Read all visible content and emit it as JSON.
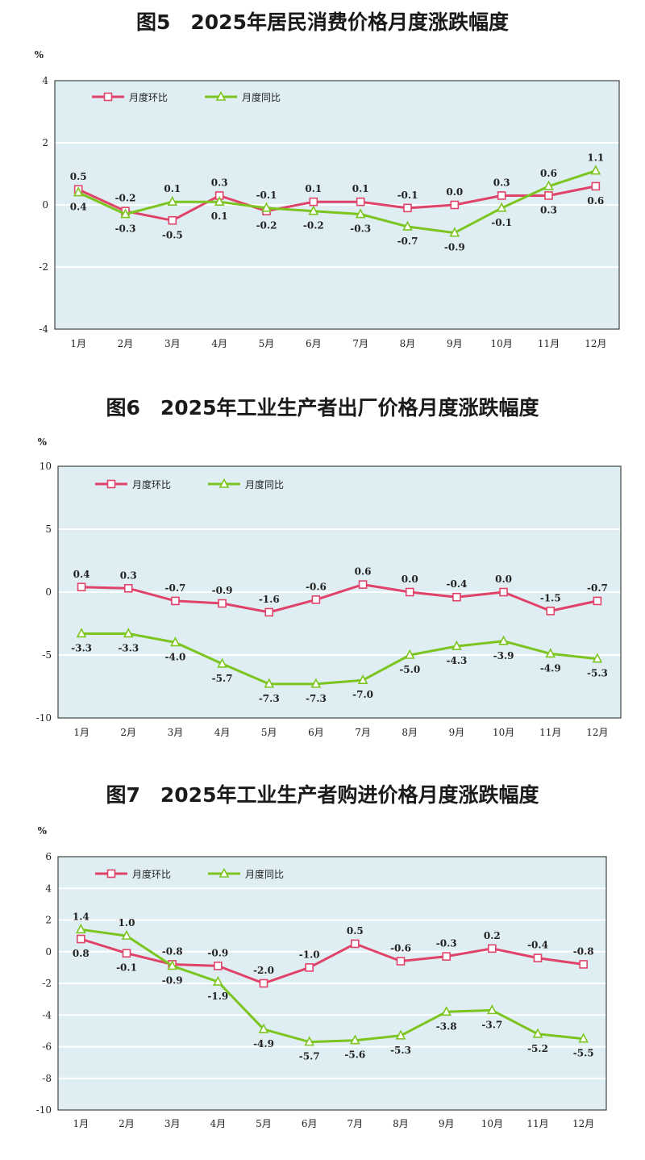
{
  "charts": [
    {
      "title": "图5　2025年居民消费价格月度涨跌幅度",
      "chart_data": {
        "type": "line",
        "categories": [
          "1月",
          "2月",
          "3月",
          "4月",
          "5月",
          "6月",
          "7月",
          "8月",
          "9月",
          "10月",
          "11月",
          "12月"
        ],
        "ylabel": "%",
        "ylim": [
          -4,
          4
        ],
        "yticks": [
          -4,
          -2,
          0,
          2,
          4
        ],
        "grid": true,
        "legend": "top-left",
        "series": [
          {
            "name": "月度环比",
            "color": "#e0436a",
            "marker": "square",
            "values": [
              0.5,
              -0.2,
              -0.5,
              0.3,
              -0.2,
              0.1,
              0.1,
              -0.1,
              0.0,
              0.3,
              0.3,
              0.6
            ]
          },
          {
            "name": "月度同比",
            "color": "#7cc520",
            "marker": "triangle",
            "values": [
              0.4,
              -0.3,
              0.1,
              0.1,
              -0.1,
              -0.2,
              -0.3,
              -0.7,
              -0.9,
              -0.1,
              0.6,
              1.1
            ]
          }
        ],
        "labels": [
          {
            "text": "0.5",
            "i": 0,
            "v": 0.5,
            "pos": "above"
          },
          {
            "text": "0.4",
            "i": 0,
            "v": 0.4,
            "pos": "below"
          },
          {
            "text": "-0.2",
            "i": 1,
            "v": -0.2,
            "pos": "above"
          },
          {
            "text": "-0.3",
            "i": 1,
            "v": -0.3,
            "pos": "below"
          },
          {
            "text": "0.1",
            "i": 2,
            "v": 0.1,
            "pos": "above"
          },
          {
            "text": "-0.5",
            "i": 2,
            "v": -0.5,
            "pos": "below"
          },
          {
            "text": "0.3",
            "i": 3,
            "v": 0.3,
            "pos": "above"
          },
          {
            "text": "0.1",
            "i": 3,
            "v": 0.1,
            "pos": "below"
          },
          {
            "text": "-0.1",
            "i": 4,
            "v": -0.1,
            "pos": "above"
          },
          {
            "text": "-0.2",
            "i": 4,
            "v": -0.2,
            "pos": "below"
          },
          {
            "text": "0.1",
            "i": 5,
            "v": 0.1,
            "pos": "above"
          },
          {
            "text": "-0.2",
            "i": 5,
            "v": -0.2,
            "pos": "below"
          },
          {
            "text": "0.1",
            "i": 6,
            "v": 0.1,
            "pos": "above"
          },
          {
            "text": "-0.3",
            "i": 6,
            "v": -0.3,
            "pos": "below"
          },
          {
            "text": "-0.1",
            "i": 7,
            "v": -0.1,
            "pos": "above"
          },
          {
            "text": "-0.7",
            "i": 7,
            "v": -0.7,
            "pos": "below"
          },
          {
            "text": "0.0",
            "i": 8,
            "v": 0.0,
            "pos": "above"
          },
          {
            "text": "-0.9",
            "i": 8,
            "v": -0.9,
            "pos": "below"
          },
          {
            "text": "0.3",
            "i": 9,
            "v": 0.3,
            "pos": "above"
          },
          {
            "text": "-0.1",
            "i": 9,
            "v": -0.1,
            "pos": "below"
          },
          {
            "text": "0.6",
            "i": 10,
            "v": 0.6,
            "pos": "above"
          },
          {
            "text": "0.3",
            "i": 10,
            "v": 0.3,
            "pos": "below"
          },
          {
            "text": "1.1",
            "i": 11,
            "v": 1.1,
            "pos": "above"
          },
          {
            "text": "0.6",
            "i": 11,
            "v": 0.6,
            "pos": "below"
          }
        ]
      }
    },
    {
      "title": "图6　2025年工业生产者出厂价格月度涨跌幅度",
      "chart_data": {
        "type": "line",
        "categories": [
          "1月",
          "2月",
          "3月",
          "4月",
          "5月",
          "6月",
          "7月",
          "8月",
          "9月",
          "10月",
          "11月",
          "12月"
        ],
        "ylabel": "%",
        "ylim": [
          -10,
          10
        ],
        "yticks": [
          -10,
          -5,
          0,
          5,
          10
        ],
        "grid": true,
        "legend": "top-left",
        "series": [
          {
            "name": "月度环比",
            "color": "#e0436a",
            "marker": "square",
            "values": [
              0.4,
              0.3,
              -0.7,
              -0.9,
              -1.6,
              -0.6,
              0.6,
              0.0,
              -0.4,
              0.0,
              -1.5,
              -0.7
            ]
          },
          {
            "name": "月度同比",
            "color": "#7cc520",
            "marker": "triangle",
            "values": [
              -3.3,
              -3.3,
              -4.0,
              -5.7,
              -7.3,
              -7.3,
              -7.0,
              -5.0,
              -4.3,
              -3.9,
              -4.9,
              -5.3
            ]
          }
        ],
        "labels": [
          {
            "text": "0.4",
            "i": 0,
            "v": 0.4,
            "pos": "above"
          },
          {
            "text": "0.3",
            "i": 1,
            "v": 0.3,
            "pos": "above"
          },
          {
            "text": "-0.7",
            "i": 2,
            "v": -0.7,
            "pos": "above"
          },
          {
            "text": "-0.9",
            "i": 3,
            "v": -0.9,
            "pos": "above"
          },
          {
            "text": "-1.6",
            "i": 4,
            "v": -1.6,
            "pos": "above"
          },
          {
            "text": "-0.6",
            "i": 5,
            "v": -0.6,
            "pos": "above"
          },
          {
            "text": "0.6",
            "i": 6,
            "v": 0.6,
            "pos": "above"
          },
          {
            "text": "0.0",
            "i": 7,
            "v": 0.0,
            "pos": "above"
          },
          {
            "text": "-0.4",
            "i": 8,
            "v": -0.4,
            "pos": "above"
          },
          {
            "text": "0.0",
            "i": 9,
            "v": 0.0,
            "pos": "above"
          },
          {
            "text": "-1.5",
            "i": 10,
            "v": -1.5,
            "pos": "above"
          },
          {
            "text": "-0.7",
            "i": 11,
            "v": -0.7,
            "pos": "above"
          },
          {
            "text": "-3.3",
            "i": 0,
            "v": -3.3,
            "pos": "below"
          },
          {
            "text": "-3.3",
            "i": 1,
            "v": -3.3,
            "pos": "below"
          },
          {
            "text": "-4.0",
            "i": 2,
            "v": -4.0,
            "pos": "below"
          },
          {
            "text": "-5.7",
            "i": 3,
            "v": -5.7,
            "pos": "below"
          },
          {
            "text": "-7.3",
            "i": 4,
            "v": -7.3,
            "pos": "below"
          },
          {
            "text": "-7.3",
            "i": 5,
            "v": -7.3,
            "pos": "below"
          },
          {
            "text": "-7.0",
            "i": 6,
            "v": -7.0,
            "pos": "below"
          },
          {
            "text": "-5.0",
            "i": 7,
            "v": -5.0,
            "pos": "below"
          },
          {
            "text": "-4.3",
            "i": 8,
            "v": -4.3,
            "pos": "below"
          },
          {
            "text": "-3.9",
            "i": 9,
            "v": -3.9,
            "pos": "below"
          },
          {
            "text": "-4.9",
            "i": 10,
            "v": -4.9,
            "pos": "below"
          },
          {
            "text": "-5.3",
            "i": 11,
            "v": -5.3,
            "pos": "below"
          }
        ]
      }
    },
    {
      "title": "图7　2025年工业生产者购进价格月度涨跌幅度",
      "chart_data": {
        "type": "line",
        "categories": [
          "1月",
          "2月",
          "3月",
          "4月",
          "5月",
          "6月",
          "7月",
          "8月",
          "9月",
          "10月",
          "11月",
          "12月"
        ],
        "ylabel": "%",
        "ylim": [
          -10,
          6
        ],
        "yticks": [
          -10,
          -8,
          -6,
          -4,
          -2,
          0,
          2,
          4,
          6
        ],
        "grid": true,
        "legend": "top-left",
        "series": [
          {
            "name": "月度环比",
            "color": "#e0436a",
            "marker": "square",
            "values": [
              0.8,
              -0.1,
              -0.8,
              -0.9,
              -2.0,
              -1.0,
              0.5,
              -0.6,
              -0.3,
              0.2,
              -0.4,
              -0.8
            ]
          },
          {
            "name": "月度同比",
            "color": "#7cc520",
            "marker": "triangle",
            "values": [
              1.4,
              1.0,
              -0.9,
              -1.9,
              -4.9,
              -5.7,
              -5.6,
              -5.3,
              -3.8,
              -3.7,
              -5.2,
              -5.5
            ]
          }
        ],
        "labels": [
          {
            "text": "1.4",
            "i": 0,
            "v": 1.4,
            "pos": "above"
          },
          {
            "text": "0.8",
            "i": 0,
            "v": 0.8,
            "pos": "below"
          },
          {
            "text": "1.0",
            "i": 1,
            "v": 1.0,
            "pos": "above"
          },
          {
            "text": "-0.1",
            "i": 1,
            "v": -0.1,
            "pos": "below"
          },
          {
            "text": "-0.8",
            "i": 2,
            "v": -0.8,
            "pos": "above"
          },
          {
            "text": "-0.9",
            "i": 2,
            "v": -0.9,
            "pos": "below"
          },
          {
            "text": "-0.9",
            "i": 3,
            "v": -0.9,
            "pos": "above"
          },
          {
            "text": "-1.9",
            "i": 3,
            "v": -1.9,
            "pos": "below"
          },
          {
            "text": "-2.0",
            "i": 4,
            "v": -2.0,
            "pos": "above"
          },
          {
            "text": "-4.9",
            "i": 4,
            "v": -4.9,
            "pos": "below"
          },
          {
            "text": "-1.0",
            "i": 5,
            "v": -1.0,
            "pos": "above"
          },
          {
            "text": "-5.7",
            "i": 5,
            "v": -5.7,
            "pos": "below"
          },
          {
            "text": "0.5",
            "i": 6,
            "v": 0.5,
            "pos": "above"
          },
          {
            "text": "-5.6",
            "i": 6,
            "v": -5.6,
            "pos": "below"
          },
          {
            "text": "-0.6",
            "i": 7,
            "v": -0.6,
            "pos": "above"
          },
          {
            "text": "-5.3",
            "i": 7,
            "v": -5.3,
            "pos": "below"
          },
          {
            "text": "-0.3",
            "i": 8,
            "v": -0.3,
            "pos": "above"
          },
          {
            "text": "-3.8",
            "i": 8,
            "v": -3.8,
            "pos": "below"
          },
          {
            "text": "0.2",
            "i": 9,
            "v": 0.2,
            "pos": "above"
          },
          {
            "text": "-3.7",
            "i": 9,
            "v": -3.7,
            "pos": "below"
          },
          {
            "text": "-0.4",
            "i": 10,
            "v": -0.4,
            "pos": "above"
          },
          {
            "text": "-5.2",
            "i": 10,
            "v": -5.2,
            "pos": "below"
          },
          {
            "text": "-0.8",
            "i": 11,
            "v": -0.8,
            "pos": "above"
          },
          {
            "text": "-5.5",
            "i": 11,
            "v": -5.5,
            "pos": "below"
          }
        ]
      }
    }
  ]
}
